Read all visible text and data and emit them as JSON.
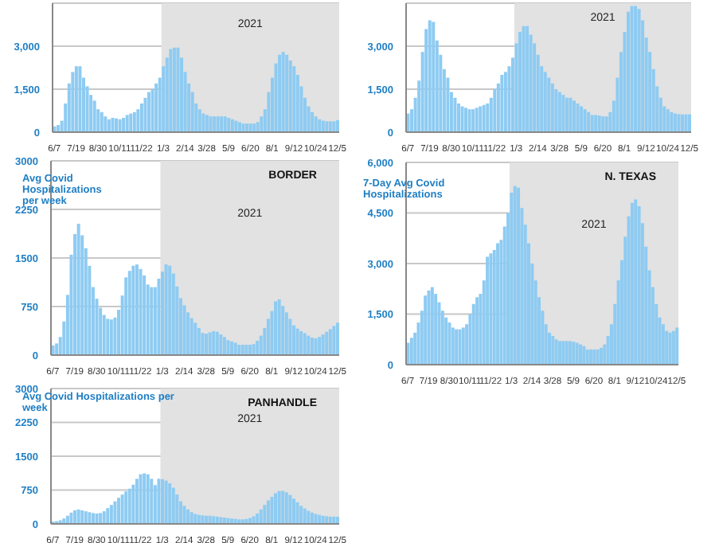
{
  "chart_data": [
    {
      "type": "bar",
      "categories": [
        "6/7",
        null,
        null,
        null,
        null,
        null,
        "7/19",
        null,
        null,
        null,
        null,
        null,
        "8/30",
        null,
        null,
        null,
        null,
        null,
        "10/11",
        null,
        null,
        null,
        null,
        null,
        "11/22",
        null,
        null,
        null,
        null,
        null,
        "1/3",
        null,
        null,
        null,
        null,
        null,
        "2/14",
        null,
        null,
        null,
        null,
        null,
        "3/28",
        null,
        null,
        null,
        null,
        null,
        "5/9",
        null,
        null,
        null,
        null,
        null,
        "6/20",
        null,
        null,
        null,
        null,
        null,
        "8/1",
        null,
        null,
        null,
        null,
        null,
        "9/12",
        null,
        null,
        null,
        null,
        null,
        "10/24",
        null,
        null,
        null,
        null,
        null,
        "12/5"
      ],
      "values": [
        200,
        250,
        400,
        1000,
        1700,
        2100,
        2300,
        2300,
        1900,
        1600,
        1300,
        1100,
        800,
        700,
        550,
        450,
        500,
        480,
        450,
        500,
        600,
        650,
        700,
        800,
        1000,
        1200,
        1400,
        1500,
        1700,
        1900,
        2300,
        2600,
        2900,
        2950,
        2950,
        2600,
        2100,
        1700,
        1400,
        1000,
        800,
        650,
        600,
        550,
        550,
        550,
        550,
        550,
        500,
        450,
        400,
        350,
        300,
        300,
        300,
        300,
        350,
        550,
        800,
        1400,
        1900,
        2400,
        2700,
        2800,
        2700,
        2500,
        2300,
        2000,
        1600,
        1200,
        900,
        700,
        550,
        450,
        400,
        380,
        380,
        380,
        420
      ],
      "color": "#8ecbf2",
      "ylim": [
        0,
        4500
      ],
      "yticks": [
        0,
        {
          "value": 1500,
          "label": "1,500"
        },
        {
          "value": 3000,
          "label": "3,000"
        }
      ],
      "grid": "y",
      "bands": [
        {
          "axis": "x",
          "from": "1/3",
          "to": "12/5",
          "label": "2021",
          "color": "#e2e2e2"
        }
      ]
    },
    {
      "type": "bar",
      "categories": [
        "6/7",
        null,
        null,
        null,
        null,
        null,
        "7/19",
        null,
        null,
        null,
        null,
        null,
        "8/30",
        null,
        null,
        null,
        null,
        null,
        "10/11",
        null,
        null,
        null,
        null,
        null,
        "11/22",
        null,
        null,
        null,
        null,
        null,
        "1/3",
        null,
        null,
        null,
        null,
        null,
        "2/14",
        null,
        null,
        null,
        null,
        null,
        "3/28",
        null,
        null,
        null,
        null,
        null,
        "5/9",
        null,
        null,
        null,
        null,
        null,
        "6/20",
        null,
        null,
        null,
        null,
        null,
        "8/1",
        null,
        null,
        null,
        null,
        null,
        "9/12",
        null,
        null,
        null,
        null,
        null,
        "10/24",
        null,
        null,
        null,
        null,
        null,
        "12/5"
      ],
      "values": [
        650,
        800,
        1200,
        1800,
        2800,
        3600,
        3900,
        3850,
        3200,
        2700,
        2200,
        1900,
        1400,
        1200,
        1000,
        900,
        850,
        800,
        800,
        850,
        900,
        950,
        1000,
        1200,
        1500,
        1700,
        2000,
        2100,
        2300,
        2600,
        3100,
        3500,
        3700,
        3700,
        3400,
        3100,
        2700,
        2300,
        2100,
        1900,
        1700,
        1500,
        1400,
        1300,
        1200,
        1200,
        1100,
        1000,
        900,
        800,
        700,
        600,
        600,
        580,
        550,
        550,
        700,
        1100,
        1900,
        2800,
        3500,
        4200,
        4400,
        4400,
        4300,
        3900,
        3300,
        2800,
        2200,
        1600,
        1200,
        900,
        800,
        700,
        650,
        630,
        620,
        620,
        620
      ],
      "color": "#8ecbf2",
      "ylim": [
        0,
        4500
      ],
      "yticks": [
        0,
        {
          "value": 1500,
          "label": "1,500"
        },
        {
          "value": 3000,
          "label": "3,000"
        }
      ],
      "grid": "y",
      "bands": [
        {
          "axis": "x",
          "from": "1/3",
          "to": "12/5",
          "label": "2021",
          "color": "#e2e2e2"
        }
      ]
    },
    {
      "type": "bar",
      "title": "BORDER",
      "ylabel": "Avg Covid Hospitalizations per week",
      "categories": [
        "6/7",
        null,
        null,
        null,
        null,
        null,
        "7/19",
        null,
        null,
        null,
        null,
        null,
        "8/30",
        null,
        null,
        null,
        null,
        null,
        "10/11",
        null,
        null,
        null,
        null,
        null,
        "11/22",
        null,
        null,
        null,
        null,
        null,
        "1/3",
        null,
        null,
        null,
        null,
        null,
        "2/14",
        null,
        null,
        null,
        null,
        null,
        "3/28",
        null,
        null,
        null,
        null,
        null,
        "5/9",
        null,
        null,
        null,
        null,
        null,
        "6/20",
        null,
        null,
        null,
        null,
        null,
        "8/1",
        null,
        null,
        null,
        null,
        null,
        "9/12",
        null,
        null,
        null,
        null,
        null,
        "10/24",
        null,
        null,
        null,
        null,
        null,
        "12/5"
      ],
      "values": [
        150,
        180,
        280,
        520,
        930,
        1550,
        1870,
        2030,
        1850,
        1650,
        1380,
        1050,
        870,
        730,
        620,
        560,
        550,
        580,
        700,
        920,
        1200,
        1300,
        1380,
        1400,
        1330,
        1230,
        1090,
        1050,
        1050,
        1180,
        1290,
        1400,
        1380,
        1260,
        1060,
        880,
        770,
        660,
        570,
        500,
        420,
        340,
        330,
        350,
        370,
        360,
        320,
        280,
        230,
        210,
        190,
        160,
        160,
        160,
        160,
        170,
        220,
        300,
        420,
        560,
        680,
        830,
        860,
        760,
        660,
        560,
        460,
        410,
        370,
        340,
        300,
        270,
        260,
        280,
        320,
        360,
        400,
        450,
        500
      ],
      "color": "#8ecbf2",
      "ylim": [
        0,
        3000
      ],
      "yticks": [
        0,
        750,
        1500,
        2250,
        3000
      ],
      "grid": "y",
      "bands": [
        {
          "axis": "x",
          "from": "1/3",
          "to": "12/5",
          "label": "2021",
          "color": "#e2e2e2"
        }
      ]
    },
    {
      "type": "bar",
      "title": "N. TEXAS",
      "ylabel": "7-Day Avg Covid Hospitalizations",
      "categories": [
        "6/7",
        null,
        null,
        null,
        null,
        null,
        "7/19",
        null,
        null,
        null,
        null,
        null,
        "8/30",
        null,
        null,
        null,
        null,
        null,
        "10/11",
        null,
        null,
        null,
        null,
        null,
        "11/22",
        null,
        null,
        null,
        null,
        null,
        "1/3",
        null,
        null,
        null,
        null,
        null,
        "2/14",
        null,
        null,
        null,
        null,
        null,
        "3/28",
        null,
        null,
        null,
        null,
        null,
        "5/9",
        null,
        null,
        null,
        null,
        null,
        "6/20",
        null,
        null,
        null,
        null,
        null,
        "8/1",
        null,
        null,
        null,
        null,
        null,
        "9/12",
        null,
        null,
        null,
        null,
        null,
        "10/24",
        null,
        null,
        null,
        null,
        null,
        "12/5"
      ],
      "values": [
        650,
        800,
        950,
        1250,
        1600,
        2050,
        2200,
        2300,
        2100,
        1850,
        1600,
        1400,
        1250,
        1100,
        1050,
        1050,
        1100,
        1200,
        1500,
        1800,
        2000,
        2100,
        2500,
        3200,
        3300,
        3400,
        3600,
        3700,
        4100,
        4500,
        5100,
        5300,
        5250,
        4650,
        4150,
        3600,
        3000,
        2500,
        2000,
        1600,
        1200,
        950,
        850,
        750,
        700,
        700,
        700,
        700,
        680,
        650,
        600,
        550,
        450,
        450,
        450,
        450,
        500,
        600,
        850,
        1200,
        1800,
        2500,
        3100,
        3800,
        4400,
        4800,
        4900,
        4700,
        4200,
        3500,
        2800,
        2300,
        1800,
        1400,
        1200,
        1000,
        950,
        1000,
        1100
      ],
      "color": "#8ecbf2",
      "ylim": [
        0,
        6000
      ],
      "yticks": [
        0,
        {
          "value": 1500,
          "label": "1,500"
        },
        {
          "value": 3000,
          "label": "3,000"
        },
        {
          "value": 4500,
          "label": "4,500"
        },
        {
          "value": 6000,
          "label": "6,000"
        }
      ],
      "grid": "y",
      "bands": [
        {
          "axis": "x",
          "from": "1/3",
          "to": "12/5",
          "label": "2021",
          "color": "#e2e2e2"
        }
      ]
    },
    {
      "type": "bar",
      "title": "PANHANDLE",
      "ylabel": "Avg Covid Hospitalizations per week",
      "categories": [
        "6/7",
        null,
        null,
        null,
        null,
        null,
        "7/19",
        null,
        null,
        null,
        null,
        null,
        "8/30",
        null,
        null,
        null,
        null,
        null,
        "10/11",
        null,
        null,
        null,
        null,
        null,
        "11/22",
        null,
        null,
        null,
        null,
        null,
        "1/3",
        null,
        null,
        null,
        null,
        null,
        "2/14",
        null,
        null,
        null,
        null,
        null,
        "3/28",
        null,
        null,
        null,
        null,
        null,
        "5/9",
        null,
        null,
        null,
        null,
        null,
        "6/20",
        null,
        null,
        null,
        null,
        null,
        "8/1",
        null,
        null,
        null,
        null,
        null,
        "9/12",
        null,
        null,
        null,
        null,
        null,
        "10/24",
        null,
        null,
        null,
        null,
        null,
        "12/5"
      ],
      "values": [
        50,
        60,
        80,
        120,
        180,
        250,
        300,
        320,
        300,
        280,
        260,
        240,
        230,
        240,
        280,
        350,
        420,
        500,
        580,
        650,
        720,
        780,
        870,
        1000,
        1100,
        1120,
        1100,
        1000,
        860,
        1000,
        990,
        960,
        900,
        800,
        650,
        500,
        400,
        320,
        260,
        220,
        200,
        190,
        180,
        180,
        170,
        160,
        150,
        140,
        130,
        120,
        110,
        100,
        100,
        110,
        130,
        170,
        230,
        320,
        420,
        520,
        600,
        680,
        730,
        730,
        700,
        640,
        560,
        480,
        400,
        340,
        290,
        250,
        220,
        200,
        180,
        170,
        160,
        160,
        160
      ],
      "color": "#8ecbf2",
      "ylim": [
        0,
        3000
      ],
      "yticks": [
        0,
        750,
        1500,
        2250,
        3000
      ],
      "grid": "y",
      "bands": [
        {
          "axis": "x",
          "from": "1/3",
          "to": "12/5",
          "label": "2021",
          "color": "#e2e2e2"
        }
      ]
    }
  ]
}
